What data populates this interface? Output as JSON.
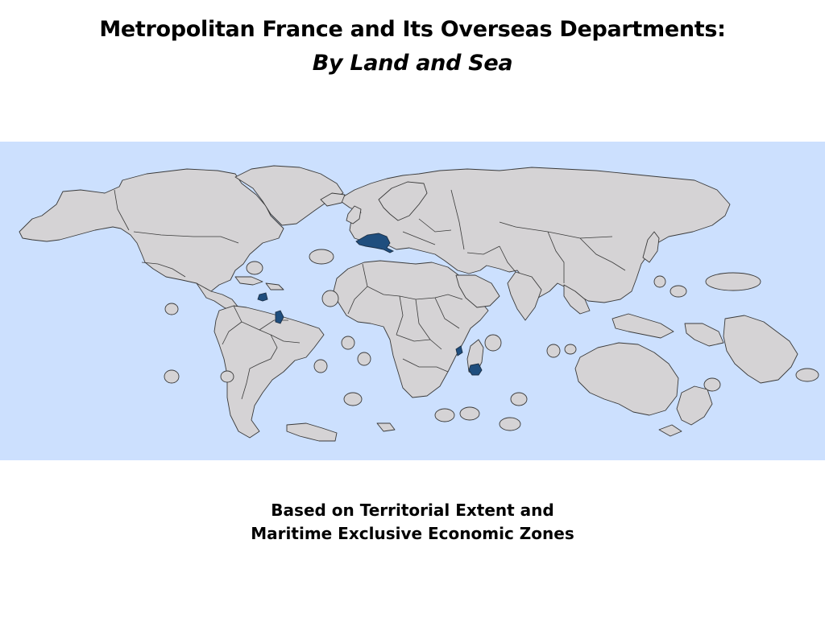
{
  "title": "Metropolitan France and Its Overseas Departments:",
  "subtitle": "By Land and Sea",
  "caption": {
    "line1": "Based on Territorial Extent and",
    "line2": "Maritime Exclusive Economic Zones"
  },
  "colors": {
    "ocean": "#cce0fe",
    "land": "#d5d3d5",
    "border": "#3a3a3a",
    "highlight": "#1f4e7e"
  },
  "highlighted_regions": [
    "Metropolitan France",
    "Guadeloupe",
    "Martinique",
    "French Guiana",
    "Mayotte",
    "Réunion"
  ]
}
